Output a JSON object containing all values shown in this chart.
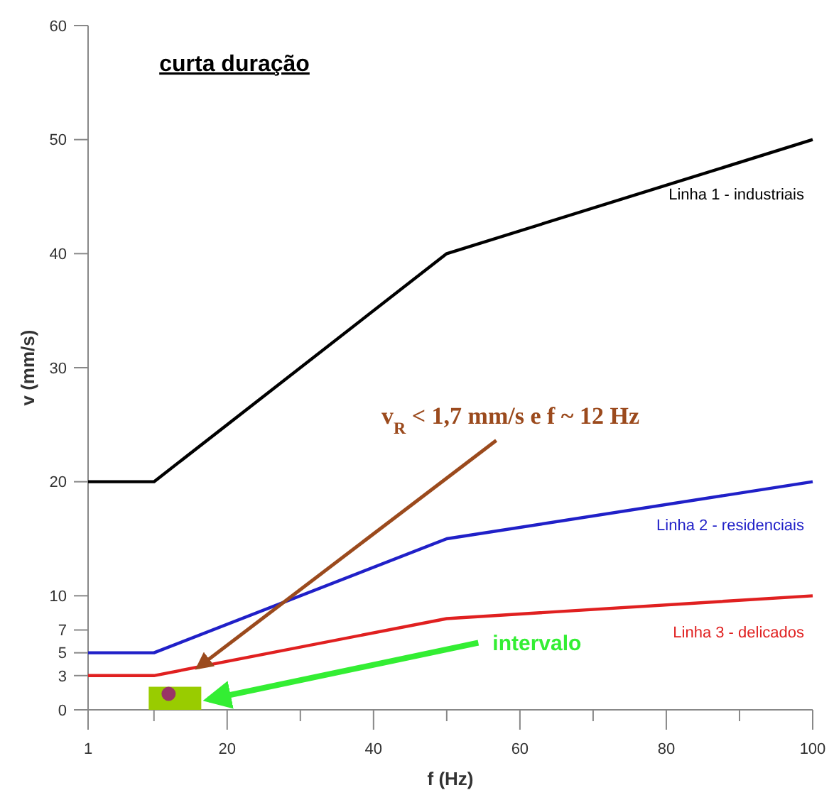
{
  "chart_data": {
    "type": "line",
    "title": "curta duração",
    "xlabel": "f (Hz)",
    "ylabel": "v (mm/s)",
    "xlim": [
      1,
      100
    ],
    "xticks": [
      1,
      {
        "value": 10,
        "label": null
      },
      20,
      {
        "value": 30,
        "label": null
      },
      40,
      {
        "value": 50,
        "label": null
      },
      60,
      {
        "value": 70,
        "label": null
      },
      80,
      {
        "value": 90,
        "label": null
      },
      100
    ],
    "ylim": [
      0,
      60
    ],
    "yticks": [
      0,
      3,
      5,
      7,
      10,
      20,
      30,
      40,
      50,
      60
    ],
    "grid": false,
    "legend": false,
    "marker": "none",
    "line_style": "solid",
    "series": [
      {
        "name": "Linha 1 - industriais",
        "color": "#000000",
        "x": [
          1,
          10,
          50,
          100
        ],
        "values": [
          20,
          20,
          40,
          50
        ]
      },
      {
        "name": "Linha 2 - residenciais",
        "color": "#2020c8",
        "x": [
          1,
          10,
          50,
          100
        ],
        "values": [
          5,
          5,
          15,
          20
        ]
      },
      {
        "name": "Linha 3 - delicados",
        "color": "#e02020",
        "x": [
          1,
          10,
          50,
          100
        ],
        "values": [
          3,
          3,
          8,
          10
        ]
      },
      {
        "type": "scatter",
        "color": "#993366",
        "x": [
          12
        ],
        "values": [
          1.4
        ],
        "marker": "circle"
      }
    ],
    "annotations": [
      {
        "text": "v$_{R}$ < 1,7 mm/s e f ~ 12 Hz",
        "x": 16,
        "y": 3.7
      },
      "intervalo"
    ]
  }
}
